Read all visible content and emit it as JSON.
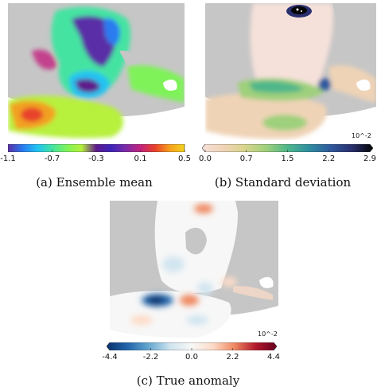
{
  "figure": {
    "panels": [
      {
        "id": "a",
        "caption": "(a) Ensemble mean",
        "colorbar": {
          "ticks": [
            "-1.1",
            "-0.7",
            "-0.3",
            "0.1",
            "0.5"
          ],
          "colors": [
            "#5a2ea6",
            "#2b7bf0",
            "#22c3f2",
            "#44e3a2",
            "#7ff25a",
            "#b4f03b",
            "#5e1a8b",
            "#3d25b8",
            "#7b2ca8",
            "#c2237e",
            "#e8422a",
            "#f7a01f",
            "#f2d21d"
          ]
        }
      },
      {
        "id": "b",
        "caption": "(b) Standard deviation",
        "scale_note": "10^-2",
        "colorbar": {
          "ticks": [
            "0.0",
            "0.7",
            "1.5",
            "2.2",
            "2.9"
          ],
          "colors": [
            "#f6e1da",
            "#efd3b6",
            "#d9d58e",
            "#9fd07b",
            "#4fb78a",
            "#2f8ea0",
            "#2f5a9e",
            "#2a2f6e",
            "#050505"
          ]
        }
      },
      {
        "id": "c",
        "caption": "(c) True anomaly",
        "scale_note": "10^-2",
        "colorbar": {
          "ticks": [
            "-4.4",
            "-2.2",
            "0.0",
            "2.2",
            "4.4"
          ],
          "colors": [
            "#08306b",
            "#2166ac",
            "#67a9cf",
            "#d1e5f0",
            "#f7f7f7",
            "#fddbc7",
            "#ef8a62",
            "#b2182b",
            "#67001f"
          ]
        }
      }
    ]
  }
}
